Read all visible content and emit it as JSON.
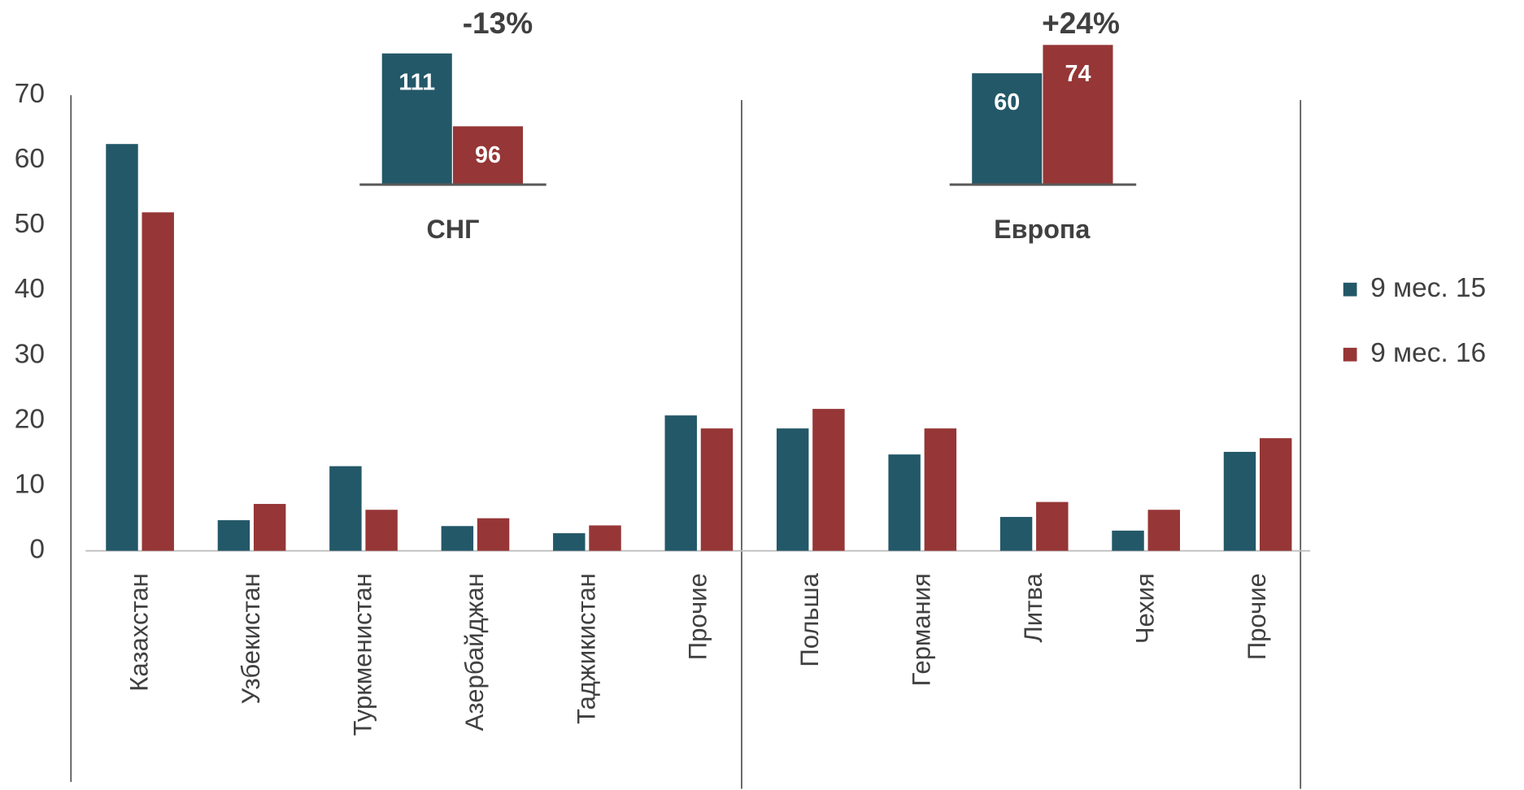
{
  "chart_data": [
    {
      "type": "bar",
      "categories": [
        "Казахстан",
        "Узбекистан",
        "Туркменистан",
        "Азербайджан",
        "Таджикистан",
        "Прочие",
        "Польша",
        "Германия",
        "Литва",
        "Чехия",
        "Прочие"
      ],
      "series": [
        {
          "name": "9 мес. 15",
          "color": "#235868",
          "values": [
            62.5,
            4.7,
            13,
            3.8,
            2.7,
            20.8,
            18.8,
            14.8,
            5.2,
            3.1,
            15.2
          ]
        },
        {
          "name": "9 мес. 16",
          "color": "#963636",
          "values": [
            52,
            7.2,
            6.3,
            5,
            3.9,
            18.8,
            21.8,
            18.8,
            7.5,
            6.3,
            17.3
          ]
        }
      ],
      "ylim": [
        0,
        70
      ],
      "yticks": [
        0,
        10,
        20,
        30,
        40,
        50,
        60,
        70
      ],
      "legend": "right"
    },
    {
      "type": "inset",
      "title": "СНГ",
      "annotation": "-13%",
      "values": [
        111,
        96
      ],
      "colors": [
        "#235868",
        "#963636"
      ],
      "ylim": [
        84,
        114
      ]
    },
    {
      "type": "inset",
      "title": "Европа",
      "annotation": "+24%",
      "values": [
        60,
        74
      ],
      "colors": [
        "#235868",
        "#963636"
      ],
      "ylim": [
        5,
        77
      ]
    }
  ]
}
